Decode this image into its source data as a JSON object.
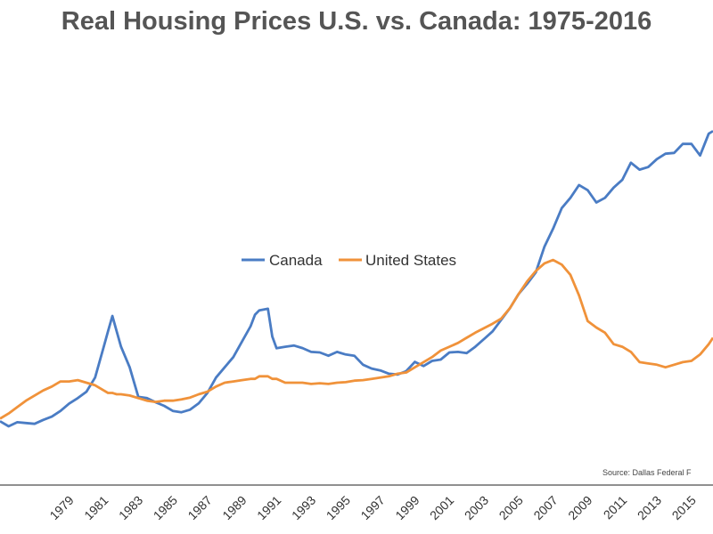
{
  "chart_data": {
    "type": "line",
    "title": "Real Housing Prices U.S. vs. Canada: 1975-2016",
    "source": "Source: Dallas Federal F",
    "xlabel": "",
    "ylabel": "",
    "xlim": [
      1975.0,
      2016.25
    ],
    "ylim": [
      0,
      130
    ],
    "grid": false,
    "legend": "center",
    "x_ticks": [
      "1979",
      "1981",
      "1983",
      "1985",
      "1987",
      "1989",
      "1991",
      "1993",
      "1995",
      "1997",
      "1999",
      "2001",
      "2003",
      "2005",
      "2007",
      "2009",
      "2011",
      "2013",
      "2015"
    ],
    "x_tick_values": [
      1979,
      1981,
      1983,
      1985,
      1987,
      1989,
      1991,
      1993,
      1995,
      1997,
      1999,
      2001,
      2003,
      2005,
      2007,
      2009,
      2011,
      2013,
      2015
    ],
    "x": [
      1975.0,
      1975.5,
      1976.0,
      1976.5,
      1977.0,
      1977.5,
      1978.0,
      1978.5,
      1979.0,
      1979.5,
      1980.0,
      1980.5,
      1981.0,
      1981.25,
      1981.5,
      1981.75,
      1982.0,
      1982.5,
      1983.0,
      1983.5,
      1984.0,
      1984.5,
      1985.0,
      1985.5,
      1986.0,
      1986.5,
      1987.0,
      1987.5,
      1988.0,
      1988.5,
      1989.0,
      1989.5,
      1989.75,
      1990.0,
      1990.5,
      1990.75,
      1991.0,
      1991.5,
      1992.0,
      1992.5,
      1993.0,
      1993.5,
      1994.0,
      1994.5,
      1995.0,
      1995.5,
      1996.0,
      1996.5,
      1997.0,
      1997.5,
      1998.0,
      1998.5,
      1999.0,
      1999.5,
      2000.0,
      2000.5,
      2001.0,
      2001.5,
      2002.0,
      2002.5,
      2003.0,
      2003.5,
      2004.0,
      2004.5,
      2005.0,
      2005.5,
      2006.0,
      2006.5,
      2007.0,
      2007.5,
      2008.0,
      2008.5,
      2009.0,
      2009.5,
      2010.0,
      2010.5,
      2011.0,
      2011.5,
      2012.0,
      2012.5,
      2013.0,
      2013.5,
      2014.0,
      2014.5,
      2015.0,
      2015.5,
      2016.0,
      2016.25
    ],
    "series": [
      {
        "name": "Canada",
        "color": "#4a7cc4",
        "values": [
          11.0,
          9.0,
          10.6,
          10.3,
          10.0,
          11.5,
          12.8,
          15.0,
          17.9,
          20.0,
          22.5,
          28.0,
          40.0,
          46.0,
          52.0,
          46.0,
          40.0,
          32.0,
          20.5,
          20.0,
          18.4,
          17.0,
          15.0,
          14.5,
          15.5,
          18.0,
          22.0,
          28.0,
          32.0,
          36.0,
          42.0,
          48.0,
          52.5,
          54.2,
          54.8,
          44.0,
          39.4,
          40.0,
          40.5,
          39.5,
          38.0,
          37.8,
          36.5,
          38.0,
          37.0,
          36.5,
          33.0,
          31.5,
          30.8,
          29.5,
          29.2,
          30.5,
          34.1,
          32.5,
          34.5,
          35.0,
          37.8,
          38.0,
          37.5,
          40.0,
          43.0,
          46.0,
          50.5,
          55.0,
          60.5,
          64.5,
          69.0,
          79.0,
          86.0,
          94.0,
          98.0,
          103.0,
          101.0,
          96.2,
          98.0,
          102.0,
          105.0,
          111.7,
          109.0,
          110.0,
          113.1,
          115.2,
          115.5,
          119.0,
          119.0,
          114.5,
          123.0,
          124.0
        ]
      },
      {
        "name": "United States",
        "color": "#f0923a",
        "values": [
          12.0,
          14.0,
          16.5,
          19.0,
          21.0,
          23.0,
          24.5,
          26.5,
          26.5,
          27.0,
          26.0,
          25.0,
          23.0,
          22.0,
          22.0,
          21.5,
          21.5,
          21.0,
          20.0,
          19.0,
          18.5,
          19.0,
          19.0,
          19.5,
          20.2,
          21.5,
          22.5,
          24.5,
          26.0,
          26.5,
          27.0,
          27.5,
          27.5,
          28.5,
          28.5,
          27.5,
          27.5,
          26.0,
          26.0,
          26.0,
          25.5,
          25.8,
          25.5,
          26.0,
          26.2,
          26.8,
          27.0,
          27.5,
          28.0,
          28.5,
          29.5,
          30.0,
          32.0,
          34.0,
          36.0,
          38.5,
          40.0,
          41.5,
          43.5,
          45.5,
          47.2,
          49.0,
          51.0,
          55.0,
          60.5,
          65.5,
          69.5,
          72.5,
          73.8,
          72.0,
          68.0,
          60.0,
          50.0,
          47.5,
          45.5,
          41.0,
          40.0,
          38.0,
          34.0,
          33.5,
          33.0,
          32.0,
          33.0,
          34.0,
          34.5,
          37.0,
          41.0,
          43.5
        ]
      }
    ]
  }
}
